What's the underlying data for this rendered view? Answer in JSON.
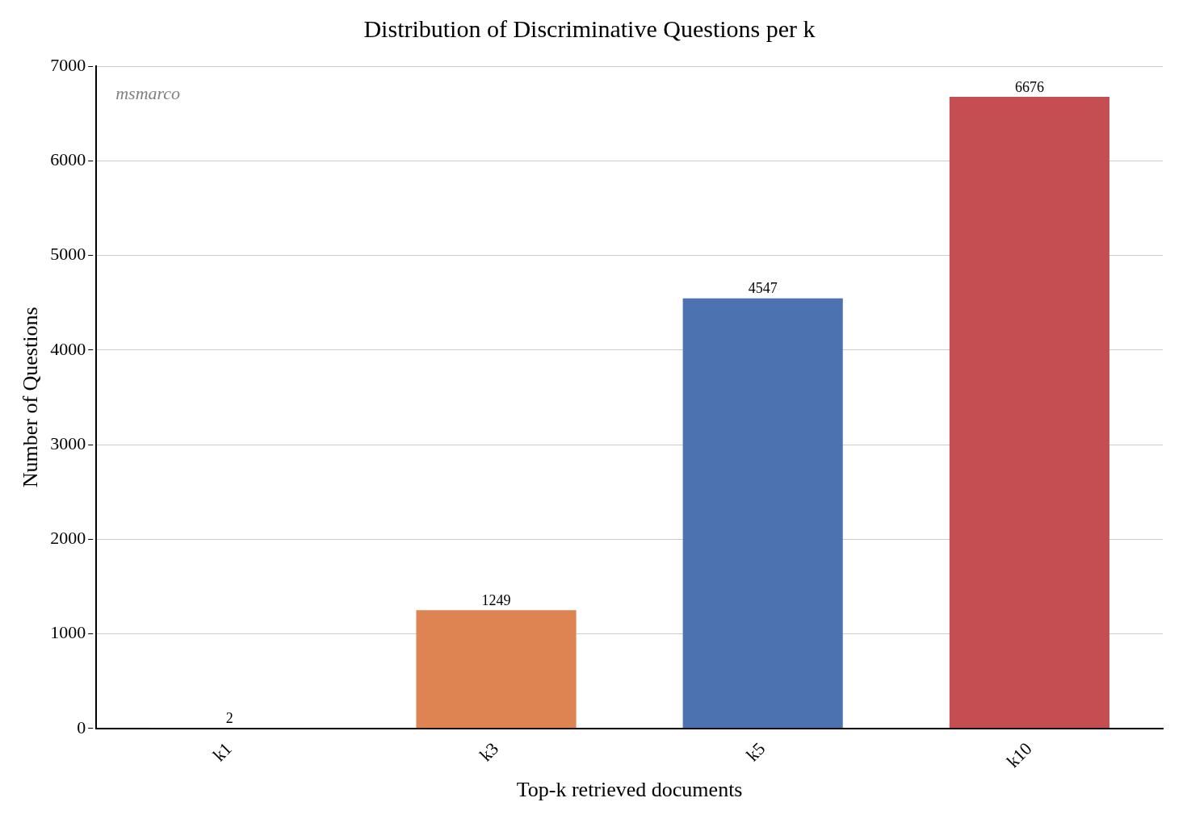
{
  "chart_data": {
    "type": "bar",
    "title": "Distribution of Discriminative Questions per k",
    "xlabel": "Top-k retrieved documents",
    "ylabel": "Number of Questions",
    "categories": [
      "k1",
      "k3",
      "k5",
      "k10"
    ],
    "values": [
      2,
      1249,
      4547,
      6676
    ],
    "colors": [
      "#4c72b0",
      "#dd8452",
      "#4c72b0",
      "#c44e52"
    ],
    "ylim": [
      0,
      7000
    ],
    "yticks": [
      0,
      1000,
      2000,
      3000,
      4000,
      5000,
      6000,
      7000
    ],
    "grid": "y",
    "legend": false,
    "data_labels": true,
    "annotations": [
      "msmarco"
    ]
  }
}
